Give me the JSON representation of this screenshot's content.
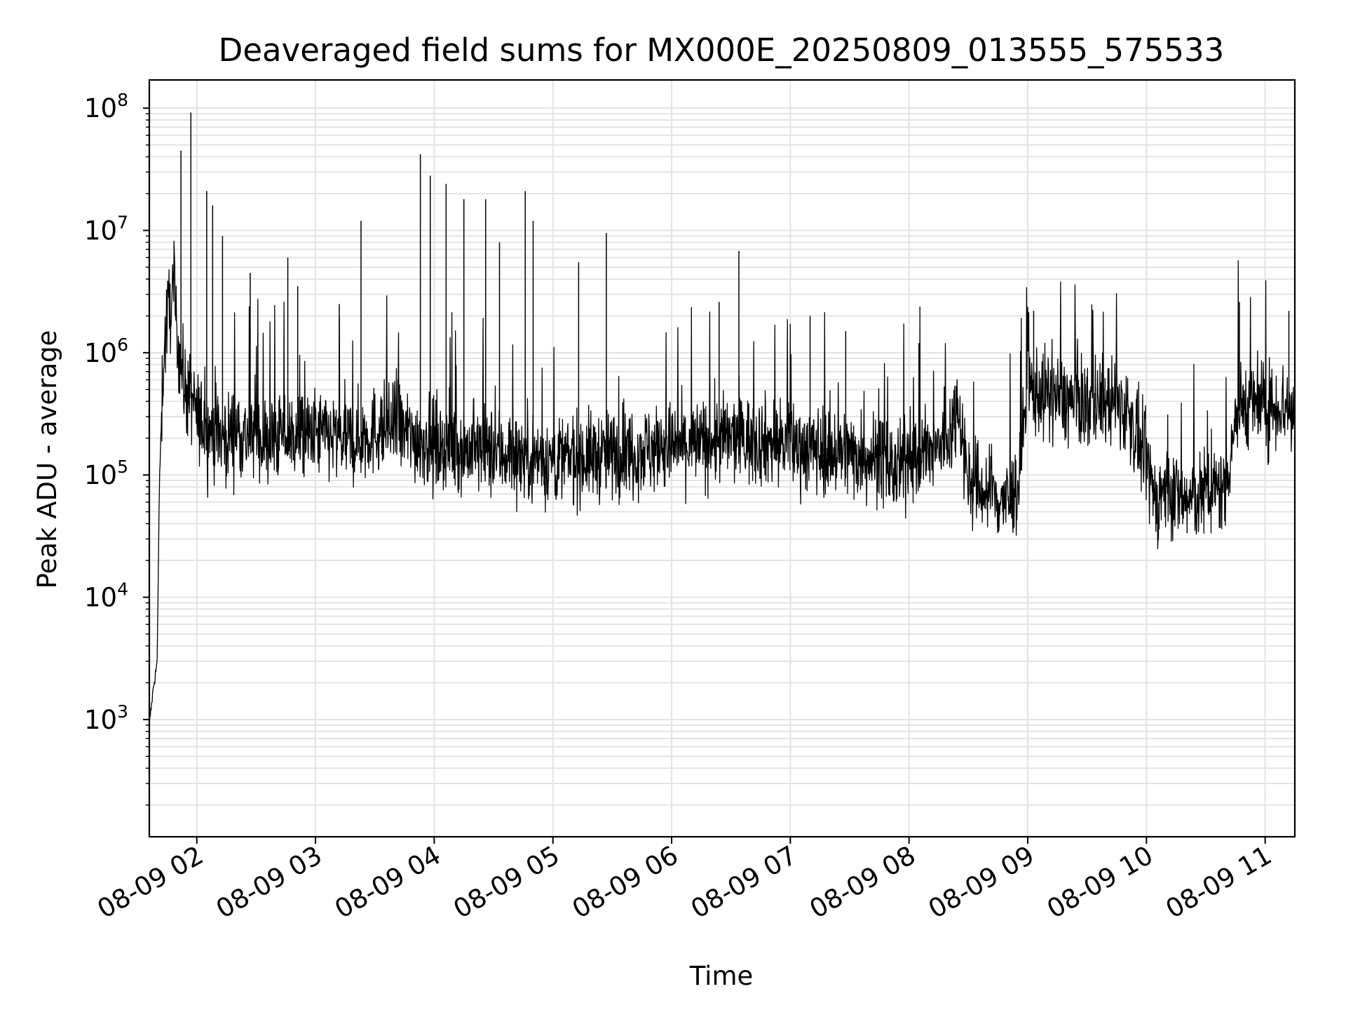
{
  "chart_data": {
    "type": "line",
    "title": "Deaveraged field sums for MX000E_20250809_013555_575533",
    "xlabel": "Time",
    "ylabel": "Peak ADU - average",
    "xscale": "time",
    "yscale": "log",
    "xlim": [
      "08-09 01:36",
      "08-09 11:15"
    ],
    "ylim": [
      110,
      170000000
    ],
    "x_ticks": [
      "08-09 02",
      "08-09 03",
      "08-09 04",
      "08-09 05",
      "08-09 06",
      "08-09 07",
      "08-09 08",
      "08-09 09",
      "08-09 10",
      "08-09 11"
    ],
    "y_ticks": [
      {
        "base": "10",
        "exp": "3",
        "value": 1000
      },
      {
        "base": "10",
        "exp": "4",
        "value": 10000
      },
      {
        "base": "10",
        "exp": "5",
        "value": 100000
      },
      {
        "base": "10",
        "exp": "6",
        "value": 1000000
      },
      {
        "base": "10",
        "exp": "7",
        "value": 10000000
      },
      {
        "base": "10",
        "exp": "8",
        "value": 100000000
      }
    ],
    "grid": true,
    "colors": {
      "line": "#000000",
      "grid": "#e3e3e3",
      "axes": "#000000"
    },
    "series": [
      {
        "x": [
          "08-09 01:36",
          "08-09 01:38",
          "08-09 01:40",
          "08-09 01:41",
          "08-09 01:42",
          "08-09 01:43",
          "08-09 01:45",
          "08-09 01:48",
          "08-09 01:50",
          "08-09 01:52",
          "08-09 01:54",
          "08-09 01:58",
          "08-09 02:00",
          "08-09 02:05",
          "08-09 02:10",
          "08-09 02:15",
          "08-09 02:20",
          "08-09 02:25",
          "08-09 02:30",
          "08-09 02:35",
          "08-09 02:40",
          "08-09 02:45",
          "08-09 02:50",
          "08-09 02:55",
          "08-09 03:00",
          "08-09 03:10",
          "08-09 03:20",
          "08-09 03:30",
          "08-09 03:40",
          "08-09 03:50",
          "08-09 04:00",
          "08-09 04:10",
          "08-09 04:20",
          "08-09 04:30",
          "08-09 04:40",
          "08-09 04:50",
          "08-09 05:00",
          "08-09 05:15",
          "08-09 05:30",
          "08-09 05:45",
          "08-09 06:00",
          "08-09 06:15",
          "08-09 06:30",
          "08-09 06:45",
          "08-09 07:00",
          "08-09 07:15",
          "08-09 07:30",
          "08-09 07:45",
          "08-09 07:55",
          "08-09 08:00",
          "08-09 08:10",
          "08-09 08:20",
          "08-09 08:25",
          "08-09 08:30",
          "08-09 08:40",
          "08-09 08:50",
          "08-09 08:55",
          "08-09 09:00",
          "08-09 09:10",
          "08-09 09:20",
          "08-09 09:30",
          "08-09 09:40",
          "08-09 09:50",
          "08-09 10:00",
          "08-09 10:05",
          "08-09 10:10",
          "08-09 10:20",
          "08-09 10:30",
          "08-09 10:40",
          "08-09 10:45",
          "08-09 10:50",
          "08-09 11:00",
          "08-09 11:10",
          "08-09 11:15"
        ],
        "y": [
          900,
          1800,
          3000,
          70000,
          250000,
          800000,
          2000000,
          3000000,
          1500000,
          800000,
          500000,
          400000,
          300000,
          250000,
          220000,
          200000,
          250000,
          200000,
          220000,
          180000,
          200000,
          220000,
          210000,
          200000,
          220000,
          200000,
          190000,
          230000,
          250000,
          200000,
          180000,
          170000,
          160000,
          150000,
          150000,
          140000,
          130000,
          140000,
          150000,
          160000,
          170000,
          180000,
          200000,
          190000,
          180000,
          160000,
          150000,
          140000,
          100000,
          160000,
          140000,
          200000,
          400000,
          90000,
          70000,
          60000,
          80000,
          500000,
          450000,
          400000,
          380000,
          400000,
          350000,
          120000,
          60000,
          80000,
          60000,
          70000,
          80000,
          300000,
          400000,
          350000,
          380000,
          300000
        ]
      }
    ],
    "spikes": [
      {
        "x": "08-09 01:52",
        "y": 45000000
      },
      {
        "x": "08-09 01:57",
        "y": 92000000
      },
      {
        "x": "08-09 02:05",
        "y": 21000000
      },
      {
        "x": "08-09 02:08",
        "y": 16000000
      },
      {
        "x": "08-09 02:13",
        "y": 9000000
      },
      {
        "x": "08-09 02:27",
        "y": 4500000
      },
      {
        "x": "08-09 02:46",
        "y": 6000000
      },
      {
        "x": "08-09 02:51",
        "y": 3500000
      },
      {
        "x": "08-09 03:12",
        "y": 2500000
      },
      {
        "x": "08-09 03:23",
        "y": 12000000
      },
      {
        "x": "08-09 03:53",
        "y": 42000000
      },
      {
        "x": "08-09 03:58",
        "y": 28000000
      },
      {
        "x": "08-09 04:06",
        "y": 24000000
      },
      {
        "x": "08-09 04:15",
        "y": 18000000
      },
      {
        "x": "08-09 04:26",
        "y": 18000000
      },
      {
        "x": "08-09 04:33",
        "y": 8000000
      },
      {
        "x": "08-09 04:46",
        "y": 21000000
      },
      {
        "x": "08-09 04:50",
        "y": 12000000
      },
      {
        "x": "08-09 05:13",
        "y": 5500000
      },
      {
        "x": "08-09 05:27",
        "y": 9500000
      },
      {
        "x": "08-09 06:24",
        "y": 2600000
      },
      {
        "x": "08-09 06:34",
        "y": 6800000
      },
      {
        "x": "08-09 07:10",
        "y": 2000000
      },
      {
        "x": "08-09 07:28",
        "y": 1500000
      },
      {
        "x": "08-09 08:05",
        "y": 1200000
      },
      {
        "x": "08-09 09:03",
        "y": 2200000
      },
      {
        "x": "08-09 10:47",
        "y": 2600000
      },
      {
        "x": "08-09 11:12",
        "y": 2200000
      }
    ]
  }
}
